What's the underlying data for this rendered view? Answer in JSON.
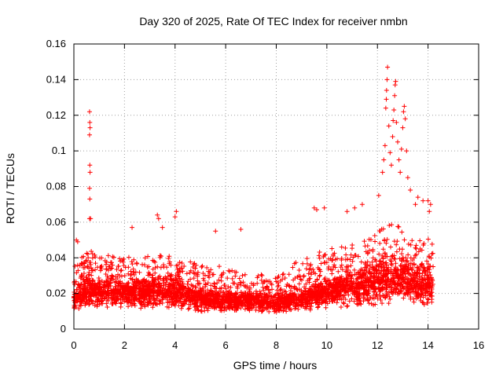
{
  "chart_data": {
    "type": "scatter",
    "title": "Day 320 of 2025, Rate Of TEC Index for receiver nmbn",
    "xlabel": "GPS time / hours",
    "ylabel": "ROTI / TECUs",
    "xlim": [
      0,
      16
    ],
    "ylim": [
      0,
      0.16
    ],
    "x_ticks": [
      0,
      2,
      4,
      6,
      8,
      10,
      12,
      14,
      16
    ],
    "x_tick_labels": [
      "0",
      "2",
      "4",
      "6",
      "8",
      "10",
      "12",
      "14",
      "16"
    ],
    "y_ticks": [
      0,
      0.02,
      0.04,
      0.06,
      0.08,
      0.1,
      0.12,
      0.14,
      0.16
    ],
    "y_tick_labels": [
      "0",
      "0.02",
      "0.04",
      "0.06",
      "0.08",
      "0.1",
      "0.12",
      "0.14",
      "0.16"
    ],
    "grid": true,
    "marker": "+",
    "color": "#ff0000",
    "data_range": [
      0,
      14.2
    ],
    "envelope": {
      "hours": [
        0,
        0.5,
        1,
        2,
        3,
        4,
        5,
        6,
        7,
        8,
        9,
        10,
        11,
        11.5,
        12,
        12.5,
        13,
        13.5,
        14,
        14.2
      ],
      "typical_max": [
        0.035,
        0.045,
        0.042,
        0.04,
        0.042,
        0.042,
        0.036,
        0.035,
        0.032,
        0.032,
        0.04,
        0.045,
        0.048,
        0.05,
        0.055,
        0.06,
        0.058,
        0.05,
        0.052,
        0.05
      ],
      "typical_min": [
        0.006,
        0.005,
        0.006,
        0.006,
        0.006,
        0.006,
        0.005,
        0.006,
        0.006,
        0.006,
        0.005,
        0.006,
        0.005,
        0.005,
        0.004,
        0.004,
        0.004,
        0.005,
        0.005,
        0.006
      ],
      "median": [
        0.016,
        0.02,
        0.02,
        0.019,
        0.02,
        0.02,
        0.016,
        0.015,
        0.015,
        0.014,
        0.016,
        0.02,
        0.022,
        0.023,
        0.025,
        0.027,
        0.027,
        0.024,
        0.024,
        0.024
      ]
    },
    "outliers": [
      {
        "x": 0.1,
        "y": 0.05
      },
      {
        "x": 0.15,
        "y": 0.049
      },
      {
        "x": 0.62,
        "y": 0.122
      },
      {
        "x": 0.63,
        "y": 0.116
      },
      {
        "x": 0.64,
        "y": 0.113
      },
      {
        "x": 0.62,
        "y": 0.109
      },
      {
        "x": 0.63,
        "y": 0.092
      },
      {
        "x": 0.64,
        "y": 0.088
      },
      {
        "x": 0.62,
        "y": 0.079
      },
      {
        "x": 0.63,
        "y": 0.073
      },
      {
        "x": 0.62,
        "y": 0.062
      },
      {
        "x": 0.66,
        "y": 0.062
      },
      {
        "x": 2.3,
        "y": 0.057
      },
      {
        "x": 3.3,
        "y": 0.064
      },
      {
        "x": 3.35,
        "y": 0.062
      },
      {
        "x": 3.5,
        "y": 0.057
      },
      {
        "x": 4.05,
        "y": 0.066
      },
      {
        "x": 4.0,
        "y": 0.063
      },
      {
        "x": 5.6,
        "y": 0.055
      },
      {
        "x": 6.6,
        "y": 0.056
      },
      {
        "x": 9.5,
        "y": 0.068
      },
      {
        "x": 9.6,
        "y": 0.067
      },
      {
        "x": 9.9,
        "y": 0.068
      },
      {
        "x": 10.8,
        "y": 0.066
      },
      {
        "x": 11.1,
        "y": 0.068
      },
      {
        "x": 11.4,
        "y": 0.07
      },
      {
        "x": 12.05,
        "y": 0.075
      },
      {
        "x": 12.2,
        "y": 0.088
      },
      {
        "x": 12.25,
        "y": 0.095
      },
      {
        "x": 12.3,
        "y": 0.103
      },
      {
        "x": 12.33,
        "y": 0.124
      },
      {
        "x": 12.35,
        "y": 0.129
      },
      {
        "x": 12.38,
        "y": 0.14
      },
      {
        "x": 12.4,
        "y": 0.147
      },
      {
        "x": 12.36,
        "y": 0.134
      },
      {
        "x": 12.45,
        "y": 0.114
      },
      {
        "x": 12.5,
        "y": 0.099
      },
      {
        "x": 12.55,
        "y": 0.092
      },
      {
        "x": 12.6,
        "y": 0.108
      },
      {
        "x": 12.62,
        "y": 0.117
      },
      {
        "x": 12.65,
        "y": 0.123
      },
      {
        "x": 12.68,
        "y": 0.131
      },
      {
        "x": 12.7,
        "y": 0.137
      },
      {
        "x": 12.72,
        "y": 0.139
      },
      {
        "x": 12.75,
        "y": 0.116
      },
      {
        "x": 12.8,
        "y": 0.105
      },
      {
        "x": 12.85,
        "y": 0.095
      },
      {
        "x": 12.9,
        "y": 0.088
      },
      {
        "x": 12.95,
        "y": 0.101
      },
      {
        "x": 13.0,
        "y": 0.113
      },
      {
        "x": 13.03,
        "y": 0.122
      },
      {
        "x": 13.06,
        "y": 0.125
      },
      {
        "x": 13.1,
        "y": 0.118
      },
      {
        "x": 13.15,
        "y": 0.1
      },
      {
        "x": 13.2,
        "y": 0.085
      },
      {
        "x": 13.3,
        "y": 0.078
      },
      {
        "x": 13.5,
        "y": 0.07
      },
      {
        "x": 13.6,
        "y": 0.074
      },
      {
        "x": 13.8,
        "y": 0.072
      },
      {
        "x": 14.0,
        "y": 0.072
      },
      {
        "x": 14.1,
        "y": 0.07
      },
      {
        "x": 14.05,
        "y": 0.066
      }
    ]
  }
}
